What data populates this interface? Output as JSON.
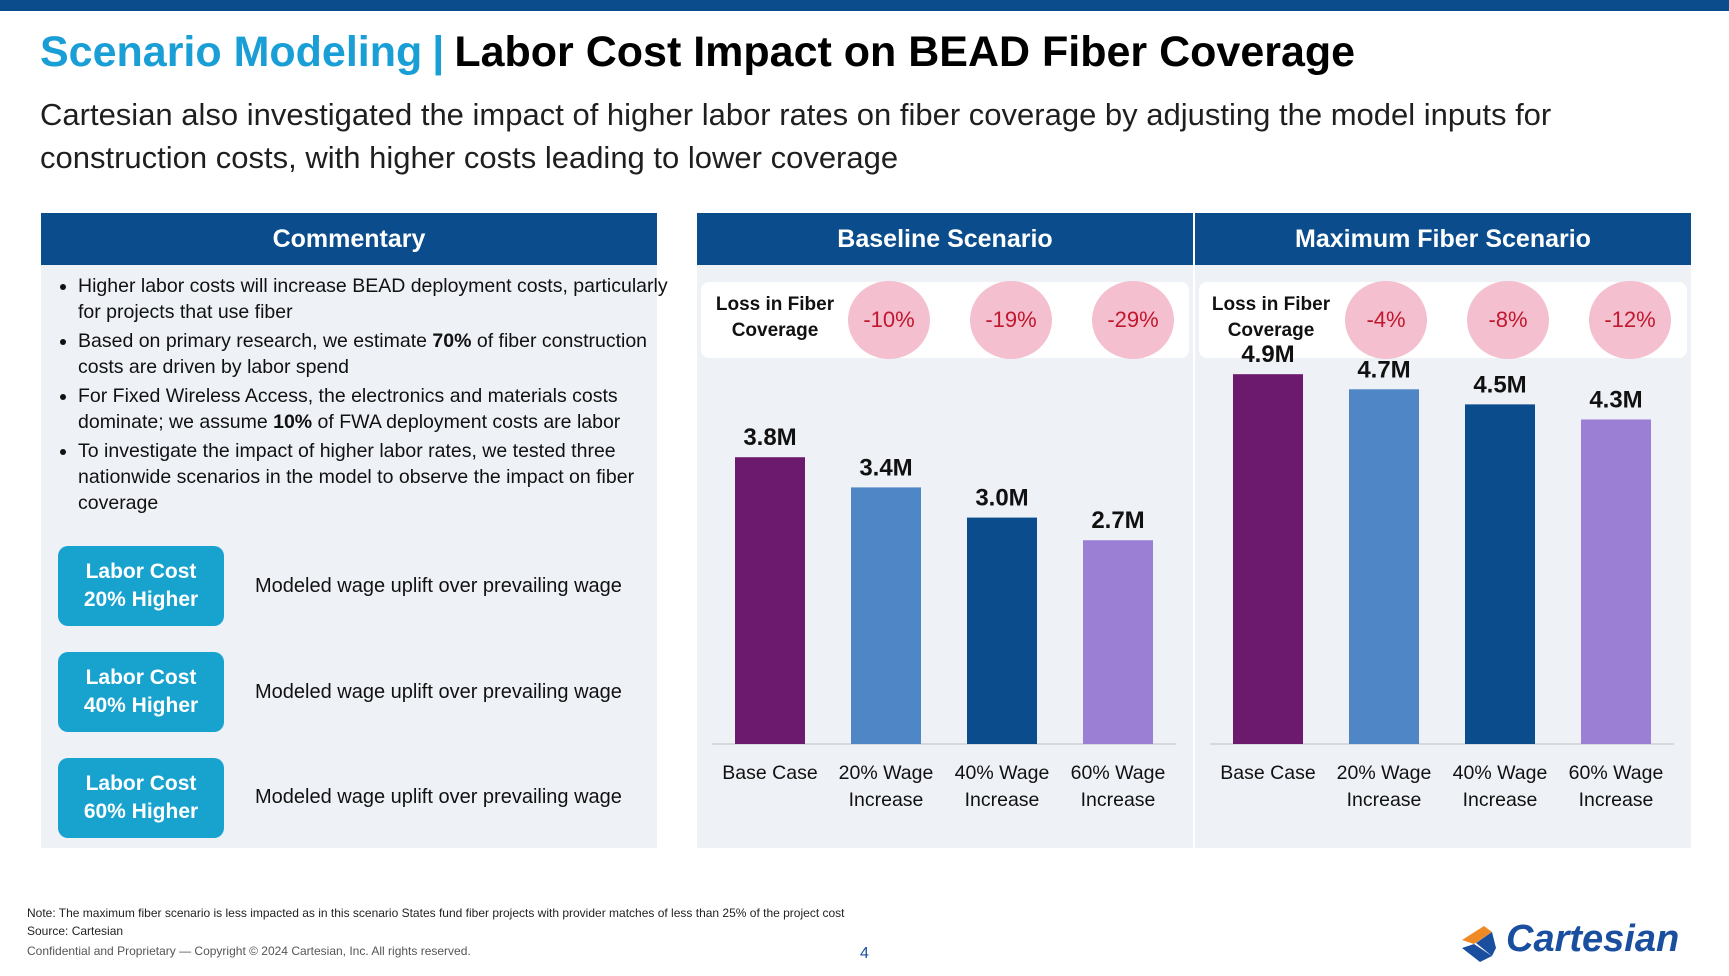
{
  "header": {
    "title_part1": "Scenario Modeling",
    "separator": "|",
    "title_part2": "Labor Cost Impact on BEAD Fiber Coverage",
    "subtitle": "Cartesian also investigated the impact of higher labor rates on fiber coverage by adjusting the model inputs for construction costs, with higher costs leading to lower coverage"
  },
  "commentary": {
    "title": "Commentary",
    "bullets": [
      "Higher labor costs will increase BEAD deployment costs, particularly for projects that use fiber",
      "Based on primary research, we estimate 70% of fiber construction costs are driven by labor spend",
      "For Fixed Wireless Access, the electronics and materials costs dominate; we assume 10% of FWA deployment costs are labor",
      "To investigate the impact of higher labor rates, we tested three nationwide scenarios in the model to observe the impact on fiber coverage"
    ],
    "labor_cases": [
      {
        "line1": "Labor Cost",
        "line2": "20% Higher",
        "desc": "Modeled wage uplift over prevailing wage"
      },
      {
        "line1": "Labor Cost",
        "line2": "40% Higher",
        "desc": "Modeled wage uplift over prevailing wage"
      },
      {
        "line1": "Labor Cost",
        "line2": "60% Higher",
        "desc": "Modeled wage uplift over prevailing wage"
      }
    ]
  },
  "chart_data": [
    {
      "type": "bar",
      "title": "Baseline Scenario",
      "loss_label": "Loss in Fiber Coverage",
      "loss_values": [
        "-10%",
        "-19%",
        "-29%"
      ],
      "categories": [
        "Base Case",
        "20% Wage Increase",
        "40% Wage Increase",
        "60% Wage Increase"
      ],
      "values": [
        3.8,
        3.4,
        3.0,
        2.7
      ],
      "value_labels": [
        "3.8M",
        "3.4M",
        "3.0M",
        "2.7M"
      ],
      "ylim": [
        0,
        5.3
      ],
      "colors": [
        "#6b1a6e",
        "#4f86c6",
        "#0b4d8c",
        "#9b7fd4"
      ]
    },
    {
      "type": "bar",
      "title": "Maximum Fiber Scenario",
      "loss_label": "Loss in Fiber Coverage",
      "loss_values": [
        "-4%",
        "-8%",
        "-12%"
      ],
      "categories": [
        "Base Case",
        "20% Wage Increase",
        "40% Wage Increase",
        "60% Wage Increase"
      ],
      "values": [
        4.9,
        4.7,
        4.5,
        4.3
      ],
      "value_labels": [
        "4.9M",
        "4.7M",
        "4.5M",
        "4.3M"
      ],
      "ylim": [
        0,
        5.3
      ],
      "colors": [
        "#6b1a6e",
        "#4f86c6",
        "#0b4d8c",
        "#9b7fd4"
      ]
    }
  ],
  "footer": {
    "note": "Note: The maximum fiber scenario is less impacted as in this scenario States fund fiber projects with provider matches of less than 25% of the project cost",
    "source": "Source: Cartesian",
    "confidential": "Confidential and Proprietary — Copyright © 2024 Cartesian, Inc. All rights reserved.",
    "page_number": "4",
    "logo_text": "Cartesian"
  }
}
